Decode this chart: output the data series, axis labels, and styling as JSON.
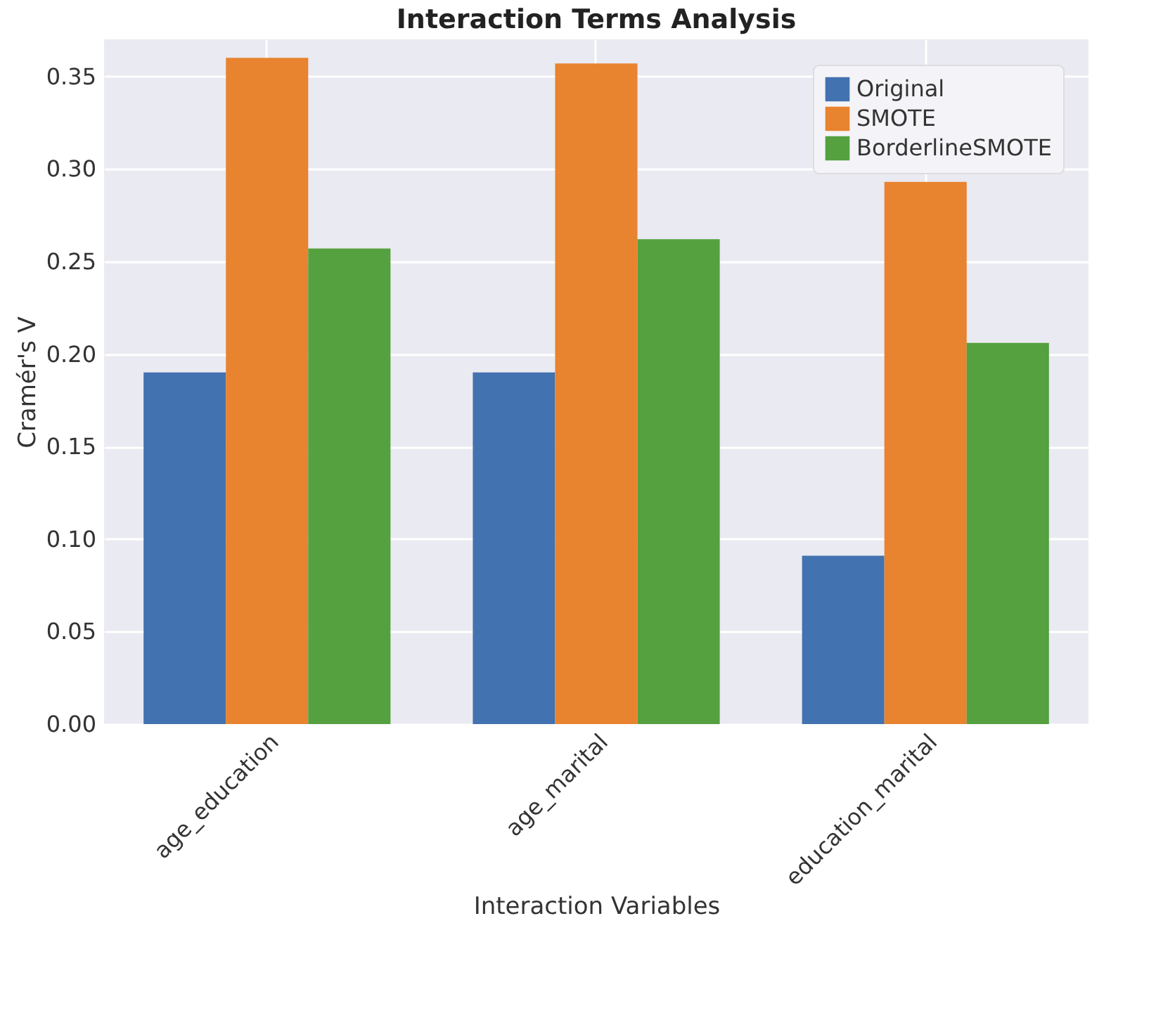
{
  "chart_data": {
    "type": "bar",
    "title": "Interaction Terms Analysis",
    "xlabel": "Interaction Variables",
    "ylabel": "Cramér's V",
    "categories": [
      "age_education",
      "age_marital",
      "education_marital"
    ],
    "series": [
      {
        "name": "Original",
        "color": "#4372b0",
        "values": [
          0.19,
          0.19,
          0.091
        ]
      },
      {
        "name": "SMOTE",
        "color": "#e8832f",
        "values": [
          0.36,
          0.357,
          0.293
        ]
      },
      {
        "name": "BorderlineSMOTE",
        "color": "#55a03f",
        "values": [
          0.257,
          0.262,
          0.206
        ]
      }
    ],
    "ylim": [
      0,
      0.37
    ],
    "yticks": [
      {
        "value": 0,
        "label": "0.00"
      },
      {
        "value": 0.05,
        "label": "0.05"
      },
      {
        "value": 0.1,
        "label": "0.10"
      },
      {
        "value": 0.15,
        "label": "0.15"
      },
      {
        "value": 0.2,
        "label": "0.20"
      },
      {
        "value": 0.25,
        "label": "0.25"
      },
      {
        "value": 0.3,
        "label": "0.30"
      },
      {
        "value": 0.35,
        "label": "0.35"
      }
    ],
    "grid": true,
    "legend": "top right"
  }
}
